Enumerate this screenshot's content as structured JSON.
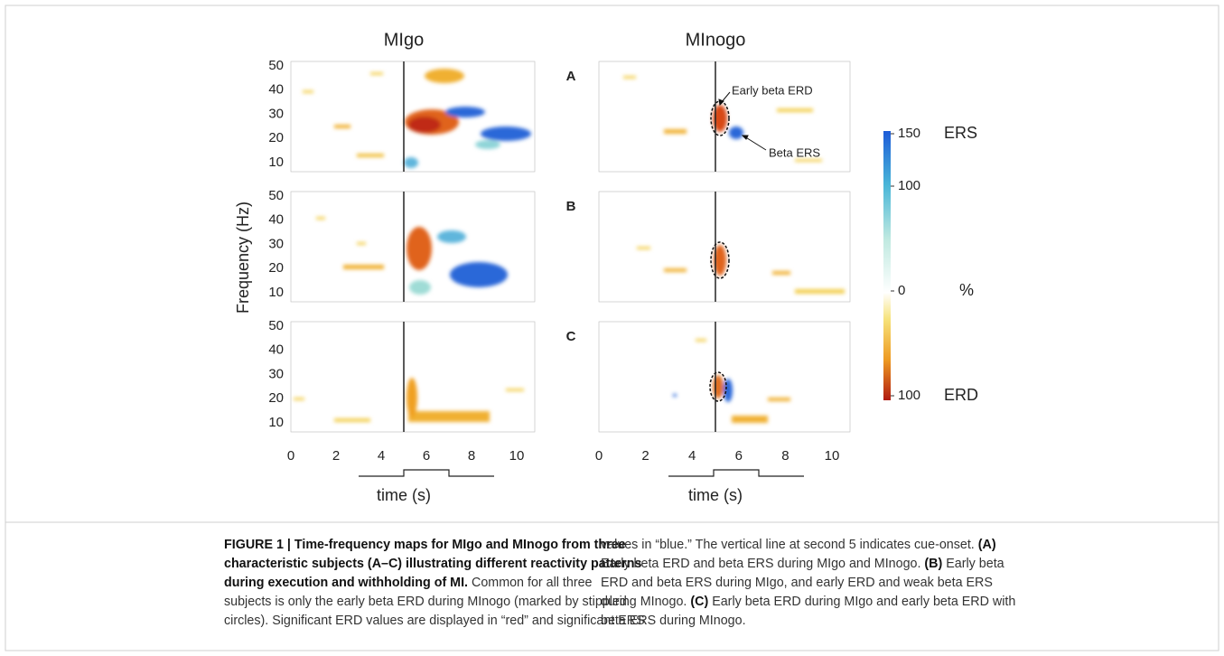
{
  "titles": [
    "MIgo",
    "MInogo"
  ],
  "y_label": "Frequency (Hz)",
  "x_label": "time (s)",
  "yticks": [
    10,
    20,
    30,
    40,
    50
  ],
  "xticks": [
    0,
    2,
    4,
    6,
    8,
    10
  ],
  "panels": [
    "A",
    "B",
    "C"
  ],
  "annotations": {
    "early": "Early beta ERD",
    "ers": "Beta ERS"
  },
  "colorbar": {
    "ticks": [
      150,
      100,
      0,
      {
        "value": -100,
        "label": "100"
      }
    ],
    "labels": {
      "top": "ERS",
      "middle": "%",
      "bottom": "ERD"
    }
  },
  "caption": {
    "left": [
      [
        {
          "text": "FIGURE 1 | Time-frequency maps for MIgo and MInogo from three",
          "bold": true
        }
      ],
      [
        {
          "text": "characteristic subjects (A–C) illustrating different reactivity patterns",
          "bold": true
        }
      ],
      [
        {
          "text": "during execution and withholding of MI.",
          "bold": true
        },
        {
          "text": " Common for all three",
          "bold": false
        }
      ],
      [
        {
          "text": "subjects is only the early beta ERD during MInogo (marked by stippled",
          "bold": false
        }
      ],
      [
        {
          "text": "circles). Significant ERD values are displayed in “red” and significant ERS",
          "bold": false
        }
      ]
    ],
    "right": [
      [
        {
          "text": "values in “blue.” The vertical line at second 5 indicates cue-onset. ",
          "bold": false
        },
        {
          "text": "(A)",
          "bold": true
        }
      ],
      [
        {
          "text": "Early beta ERD and beta ERS during MIgo and MInogo. ",
          "bold": false
        },
        {
          "text": "(B)",
          "bold": true
        },
        {
          "text": " Early beta",
          "bold": false
        }
      ],
      [
        {
          "text": "ERD and beta ERS during MIgo, and early ERD and weak beta ERS",
          "bold": false
        }
      ],
      [
        {
          "text": "during MInogo. ",
          "bold": false
        },
        {
          "text": "(C)",
          "bold": true
        },
        {
          "text": " Early beta ERD during MIgo and early beta ERD with",
          "bold": false
        }
      ],
      [
        {
          "text": "beta ERS during MInogo.",
          "bold": false
        }
      ]
    ]
  }
}
